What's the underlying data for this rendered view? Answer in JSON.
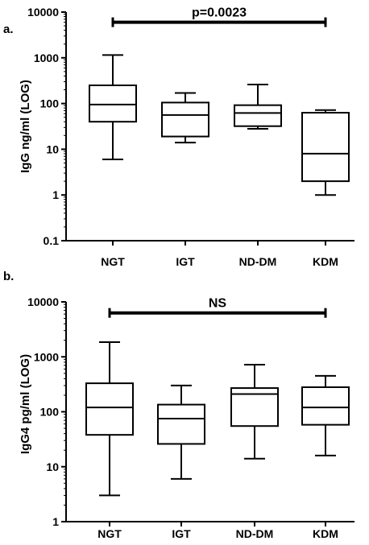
{
  "chart_data": [
    {
      "type": "boxplot",
      "panel_label": "a.",
      "ylabel": "IgG ng/ml (LOG)",
      "yscale": "log",
      "ylim": [
        0.1,
        10000
      ],
      "ytick_labels": [
        "0.1",
        "1",
        "10",
        "100",
        "1000",
        "10000"
      ],
      "yticks": [
        0.1,
        1,
        10,
        100,
        1000,
        10000
      ],
      "categories": [
        "NGT",
        "IGT",
        "ND-DM",
        "KDM"
      ],
      "boxes": [
        {
          "min": 6,
          "q1": 40,
          "median": 95,
          "q3": 250,
          "max": 1150
        },
        {
          "min": 14,
          "q1": 19,
          "median": 56,
          "q3": 105,
          "max": 170
        },
        {
          "min": 28,
          "q1": 32,
          "median": 62,
          "q3": 92,
          "max": 260
        },
        {
          "min": 1,
          "q1": 2,
          "median": 8,
          "q3": 63,
          "max": 72
        }
      ],
      "annotation": {
        "text": "p=0.0023",
        "from": "NGT",
        "to": "KDM",
        "y": 6000
      }
    },
    {
      "type": "boxplot",
      "panel_label": "b.",
      "ylabel": "IgG4 pg/ml (LOG)",
      "yscale": "log",
      "ylim": [
        1,
        10000
      ],
      "ytick_labels": [
        "1",
        "10",
        "100",
        "1000",
        "10000"
      ],
      "yticks": [
        1,
        10,
        100,
        1000,
        10000
      ],
      "categories": [
        "NGT",
        "IGT",
        "ND-DM",
        "KDM"
      ],
      "boxes": [
        {
          "min": 3,
          "q1": 38,
          "median": 120,
          "q3": 330,
          "max": 1850
        },
        {
          "min": 6,
          "q1": 26,
          "median": 75,
          "q3": 135,
          "max": 300
        },
        {
          "min": 14,
          "q1": 55,
          "median": 210,
          "q3": 270,
          "max": 720
        },
        {
          "min": 16,
          "q1": 58,
          "median": 120,
          "q3": 280,
          "max": 450
        }
      ],
      "annotation": {
        "text": "NS",
        "from": "NGT",
        "to": "KDM",
        "y": 6300
      }
    }
  ]
}
